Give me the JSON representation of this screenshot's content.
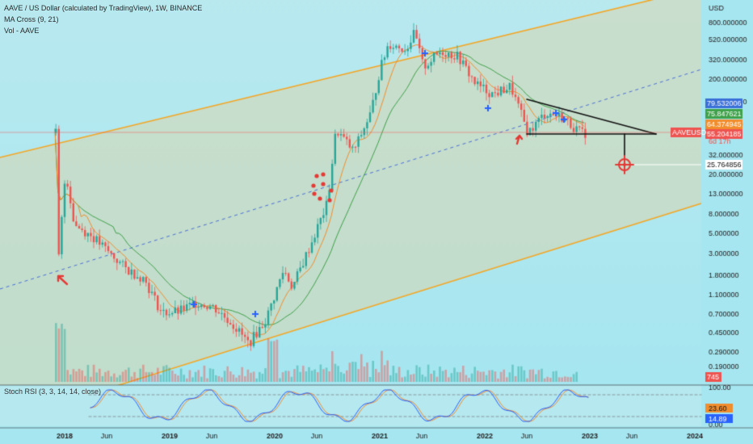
{
  "header": {
    "title": "AAVE / US Dollar (calculated by TradingView), 1W, BINANCE",
    "indicator1": "MA Cross (9, 21)",
    "indicator2": "Vol - AAVE",
    "currency": "USD"
  },
  "chart_data": {
    "type": "candlestick",
    "symbol": "AAVEUSD",
    "timeframe": "1W",
    "price_axis": {
      "scale": "log",
      "ticks": [
        "800.000000",
        "520.000000",
        "320.000000",
        "200.000000",
        "130.000000",
        "80.000000",
        "32.000000",
        "20.000000",
        "13.000000",
        "8.000000",
        "5.000000",
        "3.000000",
        "1.800000",
        "1.100000",
        "0.700000",
        "0.450000",
        "0.290000",
        "0.190000"
      ]
    },
    "time_axis": {
      "ticks": [
        "2018",
        "Jun",
        "2019",
        "Jun",
        "2020",
        "Jun",
        "2021",
        "Jun",
        "2022",
        "Jun",
        "2023",
        "Jun",
        "2024"
      ]
    },
    "price_labels": [
      {
        "text": "79.532006",
        "color": "#3a6fd8"
      },
      {
        "text": "75.847621",
        "color": "#3fa14a"
      },
      {
        "text": "64.374945",
        "color": "#f28d2c"
      },
      {
        "text": "55.204185",
        "color": "#ef5350"
      },
      {
        "text": "25.764856",
        "color": "#ffffff"
      },
      {
        "text": "745",
        "color": "#ef5350"
      }
    ],
    "current_price_label": {
      "symbol": "AAVEUSD",
      "countdown": "6d 17h"
    },
    "approx_close_series": [
      {
        "x": "2017-12",
        "y": 1.5
      },
      {
        "x": "2018-01",
        "y": 22
      },
      {
        "x": "2018-02",
        "y": 6
      },
      {
        "x": "2018-04",
        "y": 4.5
      },
      {
        "x": "2018-06",
        "y": 3
      },
      {
        "x": "2018-08",
        "y": 2
      },
      {
        "x": "2018-10",
        "y": 1.6
      },
      {
        "x": "2018-12",
        "y": 0.7
      },
      {
        "x": "2019-02",
        "y": 0.72
      },
      {
        "x": "2019-04",
        "y": 0.9
      },
      {
        "x": "2019-06",
        "y": 0.8
      },
      {
        "x": "2019-08",
        "y": 0.55
      },
      {
        "x": "2019-10",
        "y": 0.33
      },
      {
        "x": "2019-12",
        "y": 0.6
      },
      {
        "x": "2020-02",
        "y": 2
      },
      {
        "x": "2020-03",
        "y": 1.3
      },
      {
        "x": "2020-05",
        "y": 3.5
      },
      {
        "x": "2020-07",
        "y": 10
      },
      {
        "x": "2020-08",
        "y": 60
      },
      {
        "x": "2020-10",
        "y": 35
      },
      {
        "x": "2020-12",
        "y": 90
      },
      {
        "x": "2021-01",
        "y": 250
      },
      {
        "x": "2021-02",
        "y": 480
      },
      {
        "x": "2021-04",
        "y": 420
      },
      {
        "x": "2021-05",
        "y": 620
      },
      {
        "x": "2021-06",
        "y": 270
      },
      {
        "x": "2021-08",
        "y": 400
      },
      {
        "x": "2021-10",
        "y": 350
      },
      {
        "x": "2021-12",
        "y": 180
      },
      {
        "x": "2022-02",
        "y": 140
      },
      {
        "x": "2022-04",
        "y": 170
      },
      {
        "x": "2022-06",
        "y": 55
      },
      {
        "x": "2022-08",
        "y": 90
      },
      {
        "x": "2022-10",
        "y": 80
      },
      {
        "x": "2022-12",
        "y": 55
      }
    ],
    "stoch_rsi": {
      "label": "Stoch RSI (3, 3, 14, 14, close)",
      "ticks": [
        "100.00",
        "0.00"
      ],
      "k_value": "23.60",
      "d_value": "14.89"
    },
    "pattern": "descending triangle with measured-move target"
  },
  "colors": {
    "bg_top": "#c5ddb8",
    "bg_bottom": "#a6e6f0",
    "channel": "#f5a623",
    "ma_fast": "#f28d2c",
    "ma_slow": "#3fa14a",
    "up": "#26a69a",
    "down": "#ef5350",
    "marker": "#e53935"
  }
}
